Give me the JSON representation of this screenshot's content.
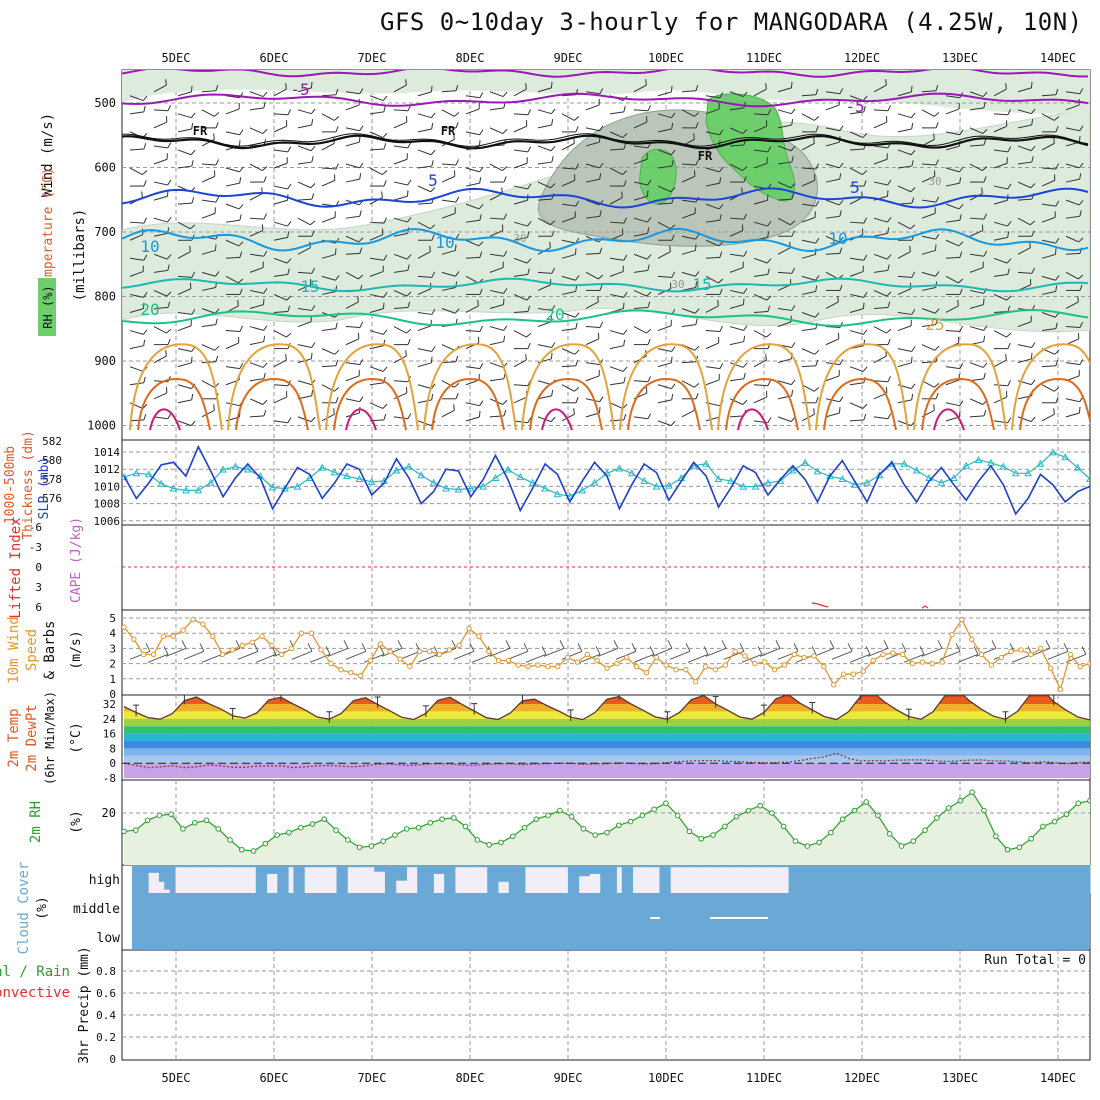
{
  "title": "GFS 0~10day 3-hourly for MANGODARA (4.25W, 10N)",
  "colors": {
    "purple": "#9b18b8",
    "black": "#111111",
    "blue5": "#1a45d6",
    "blue10": "#1898e0",
    "teal15": "#20b7b0",
    "green20": "#1fbf88",
    "orange": "#e3a23a",
    "darkorange": "#dd6b1c",
    "magenta": "#d0177b",
    "rh_green": "#6ccf6c",
    "rh_grey": "#b9c6b9",
    "rh_light": "#dcebdc",
    "slp": "#1f3fcf",
    "thickness": "#27b7c8",
    "wind": "#e3962e",
    "rh2m": "#2e9e2e",
    "cloud": "#6aa9d6",
    "precip_green": "#2e9e2e",
    "precip_red": "#e03030"
  },
  "chart_data": [
    {
      "type": "contour",
      "panel": "upper-air",
      "y_axis_label": "(millibars)",
      "side_labels": [
        "Wind (m/s)",
        "Temperature (°C)",
        "RH (%)"
      ],
      "y_ticks": [
        500,
        600,
        700,
        800,
        900,
        1000
      ],
      "x_ticks": [
        "5DEC",
        "6DEC",
        "7DEC",
        "8DEC",
        "9DEC",
        "10DEC",
        "11DEC",
        "12DEC",
        "13DEC",
        "14DEC"
      ],
      "contour_labels": [
        {
          "text": "-5",
          "level": -5
        },
        {
          "text": "-5",
          "level": -5
        },
        {
          "text": "FR",
          "level": 0
        },
        {
          "text": "FR",
          "level": 0
        },
        {
          "text": "FR",
          "level": 0
        },
        {
          "text": "5",
          "level": 5
        },
        {
          "text": "5",
          "level": 5
        },
        {
          "text": "10",
          "level": 10
        },
        {
          "text": "10",
          "level": 10
        },
        {
          "text": "10",
          "level": 10
        },
        {
          "text": "15",
          "level": 15
        },
        {
          "text": "15",
          "level": 15
        },
        {
          "text": "20",
          "level": 20
        },
        {
          "text": "20",
          "level": 20
        },
        {
          "text": "25",
          "level": 25
        },
        {
          "text": "30",
          "level": 30
        },
        {
          "text": "30",
          "level": 30
        },
        {
          "text": "30",
          "level": 30
        }
      ]
    },
    {
      "type": "line",
      "panel": "slp-thickness",
      "left_labels": [
        "1000-500mb",
        "Thickness (dm)"
      ],
      "right_label": "SLP (mb)",
      "thickness_ticks": [
        576,
        578,
        580,
        582
      ],
      "slp_ticks": [
        1006,
        1008,
        1010,
        1012,
        1014
      ],
      "series": [
        {
          "name": "SLP (mb)",
          "values": [
            1011.2,
            1008.6,
            1010.4,
            1012.5,
            1012.8,
            1011.2,
            1014.6,
            1011.8,
            1008.8,
            1011.0,
            1012.6,
            1011.0,
            1007.4,
            1009.8,
            1012.2,
            1011.4,
            1008.6,
            1010.4,
            1012.6,
            1012.0,
            1009.0,
            1010.4,
            1013.2,
            1011.0,
            1008.0,
            1009.4,
            1012.0,
            1011.8,
            1008.8,
            1010.8,
            1013.6,
            1010.8,
            1007.2,
            1009.8,
            1012.6,
            1011.4,
            1008.2,
            1010.6,
            1012.8,
            1011.2,
            1007.4,
            1010.2,
            1012.6,
            1011.6,
            1008.4,
            1010.6,
            1012.8,
            1011.2,
            1007.6,
            1009.8,
            1012.4,
            1011.6,
            1009.0,
            1010.8,
            1012.4,
            1010.8,
            1008.2,
            1011.2,
            1013.0,
            1010.6,
            1008.2,
            1011.4,
            1012.8,
            1010.2,
            1008.2,
            1010.6,
            1012.2,
            1010.2,
            1008.4,
            1010.6,
            1012.4,
            1010.2,
            1006.8,
            1008.6,
            1011.4,
            1010.2,
            1008.2,
            1009.4,
            1010.0
          ]
        },
        {
          "name": "1000-500mb Thickness (dm)",
          "values": [
            578.2,
            578.6,
            578.5,
            577.5,
            577.0,
            576.8,
            576.8,
            577.6,
            579.0,
            579.3,
            579.0,
            578.3,
            577.1,
            577.0,
            577.2,
            578.1,
            579.2,
            578.7,
            578.3,
            578.0,
            577.7,
            577.8,
            578.9,
            579.3,
            578.4,
            577.6,
            577.0,
            576.9,
            577.0,
            577.2,
            578.1,
            579.0,
            578.2,
            577.6,
            577.0,
            576.4,
            576.2,
            576.8,
            577.6,
            578.6,
            579.1,
            578.6,
            577.8,
            577.2,
            577.3,
            578.1,
            579.4,
            579.6,
            578.0,
            577.8,
            577.2,
            577.2,
            577.6,
            577.8,
            578.9,
            579.7,
            578.8,
            578.3,
            578.0,
            577.4,
            577.6,
            578.4,
            579.6,
            579.6,
            578.9,
            578.1,
            577.6,
            578.1,
            579.4,
            580.0,
            579.7,
            579.3,
            578.6,
            578.6,
            579.6,
            580.8,
            580.3,
            579.2,
            578.0
          ]
        }
      ]
    },
    {
      "type": "line",
      "panel": "cape-li",
      "left_labels": [
        "Lifted Index",
        "CAPE (J/kg)"
      ],
      "y_ticks": [
        -6,
        -3,
        0,
        3,
        6
      ]
    },
    {
      "type": "line",
      "panel": "wind10m",
      "left_labels": [
        "10m Wind",
        "Speed",
        "& Barbs",
        "(m/s)"
      ],
      "y_ticks": [
        0,
        1,
        2,
        3,
        4,
        5
      ],
      "series": [
        {
          "name": "10m Wind Speed (m/s)",
          "values": [
            4.4,
            3.6,
            2.6,
            2.6,
            3.8,
            3.8,
            4.2,
            4.9,
            4.6,
            3.8,
            2.6,
            2.9,
            3.2,
            3.4,
            3.8,
            3.2,
            2.6,
            3.0,
            4.0,
            4.0,
            2.9,
            2.0,
            1.6,
            1.4,
            1.2,
            2.2,
            3.3,
            2.8,
            2.3,
            1.8,
            2.8,
            2.8,
            2.6,
            2.9,
            3.2,
            4.3,
            3.8,
            2.8,
            2.2,
            2.2,
            1.9,
            1.8,
            1.9,
            1.8,
            1.8,
            2.4,
            2.1,
            2.6,
            2.2,
            1.7,
            2.0,
            2.4,
            1.8,
            1.4,
            2.4,
            1.9,
            1.6,
            1.6,
            0.8,
            1.8,
            1.6,
            1.9,
            2.8,
            2.5,
            2.0,
            2.1,
            1.6,
            1.9,
            2.6,
            2.4,
            2.5,
            1.8,
            0.6,
            1.3,
            1.3,
            1.5,
            2.2,
            2.6,
            2.7,
            2.6,
            2.0,
            2.1,
            2.0,
            2.1,
            3.9,
            4.9,
            3.6,
            2.6,
            1.9,
            2.4,
            2.8,
            2.9,
            2.6,
            3.0,
            1.7,
            0.3,
            2.6,
            1.8,
            2.0
          ]
        }
      ]
    },
    {
      "type": "area",
      "panel": "temp2m",
      "left_labels": [
        "2m Temp",
        "2m DewPt",
        "(6hr Min/Max)",
        "(°C)"
      ],
      "y_ticks": [
        -8,
        0,
        8,
        16,
        24,
        32
      ],
      "series": [
        {
          "name": "2m Temp (°C)",
          "values": [
            30.6,
            27.4,
            24.6,
            23.8,
            26.8,
            33.8,
            35.8,
            32.2,
            29.4,
            25.6,
            24.4,
            27.2,
            34.2,
            35.6,
            32.0,
            28.8,
            25.0,
            23.8,
            27.0,
            33.8,
            35.4,
            31.8,
            28.4,
            24.8,
            23.6,
            27.0,
            34.0,
            35.6,
            31.8,
            28.2,
            24.6,
            23.6,
            27.2,
            33.8,
            34.6,
            31.2,
            28.2,
            24.8,
            23.6,
            27.4,
            34.6,
            36.0,
            32.0,
            28.6,
            25.0,
            23.8,
            27.4,
            34.4,
            36.6,
            32.0,
            28.6,
            25.0,
            23.8,
            27.4,
            34.8,
            37.2,
            32.4,
            28.8,
            25.2,
            23.6,
            27.8,
            36.2,
            38.6,
            33.0,
            28.8,
            25.2,
            23.8,
            27.8,
            36.6,
            39.8,
            33.8,
            29.2,
            25.4,
            23.8,
            28.0,
            36.6,
            40.2,
            33.2,
            28.8,
            25.0,
            23.4
          ]
        },
        {
          "name": "2m DewPt (°C)",
          "values": [
            0.0,
            -1.2,
            -2.4,
            -2.0,
            -1.4,
            -2.4,
            -2.0,
            -1.0,
            -1.4,
            -2.2,
            -2.2,
            -1.6,
            -1.4,
            -1.4,
            -2.4,
            -2.0,
            -1.4,
            -1.2,
            -1.6,
            -2.0,
            -1.4,
            -0.6,
            -0.4,
            -1.0,
            -1.2,
            -0.6,
            -0.2,
            -0.4,
            -1.0,
            -1.2,
            -0.6,
            -0.4,
            -0.2,
            -0.8,
            -0.4,
            -0.2,
            0.0,
            0.0,
            -0.6,
            -0.4,
            -0.2,
            0.2,
            0.0,
            -0.4,
            -0.2,
            0.4,
            0.8,
            1.2,
            1.4,
            1.4,
            1.0,
            0.8,
            0.4,
            0.2,
            0.2,
            0.6,
            1.4,
            2.6,
            3.4,
            5.4,
            2.6,
            1.2,
            1.4,
            1.2,
            1.6,
            1.8,
            1.8,
            1.4,
            1.0,
            1.2,
            1.6,
            1.8,
            1.2,
            1.2,
            0.8,
            0.2,
            0.8,
            0.4,
            -0.2,
            0.4,
            0.6
          ]
        }
      ]
    },
    {
      "type": "area",
      "panel": "rh2m",
      "left_labels": [
        "2m RH",
        "(%)"
      ],
      "y_ticks": [
        20
      ],
      "series": [
        {
          "name": "2m RH (%)",
          "values": [
            12.5,
            13.0,
            17.0,
            19.0,
            19.5,
            13.5,
            16.0,
            17.0,
            13.5,
            9.0,
            5.0,
            4.5,
            7.5,
            11.0,
            12.0,
            14.0,
            15.5,
            17.5,
            13.0,
            9.0,
            6.0,
            6.5,
            8.5,
            11.0,
            13.5,
            14.0,
            16.0,
            17.5,
            18.0,
            14.5,
            9.0,
            7.0,
            8.0,
            10.5,
            14.0,
            17.5,
            19.0,
            21.0,
            18.5,
            13.5,
            11.0,
            12.0,
            15.0,
            16.5,
            19.0,
            21.5,
            24.0,
            19.0,
            12.5,
            9.5,
            11.0,
            14.5,
            18.5,
            21.0,
            23.0,
            20.0,
            14.5,
            8.5,
            6.5,
            8.0,
            12.0,
            17.5,
            21.0,
            24.5,
            19.0,
            11.5,
            6.5,
            8.5,
            13.0,
            18.0,
            22.0,
            25.0,
            28.5,
            21.0,
            10.5,
            5.0,
            6.0,
            9.5,
            14.5,
            16.5,
            19.5,
            24.0,
            25.0
          ]
        }
      ]
    },
    {
      "type": "bar",
      "panel": "cloud",
      "left_labels": [
        "Cloud Cover",
        "(%)"
      ],
      "y_ticks": [
        "high",
        "middle",
        "low"
      ],
      "series": [
        {
          "name": "high cloud (%)",
          "values": [
            100,
            100,
            100,
            28,
            28,
            60,
            88,
            100,
            8,
            8,
            8,
            8,
            8,
            8,
            8,
            8,
            8,
            8,
            8,
            8,
            8,
            8,
            8,
            100,
            100,
            32,
            32,
            100,
            100,
            8,
            100,
            100,
            8,
            8,
            8,
            8,
            8,
            8,
            100,
            100,
            8,
            8,
            8,
            8,
            8,
            24,
            24,
            100,
            100,
            56,
            56,
            8,
            8,
            100,
            100,
            100,
            32,
            32,
            100,
            100,
            8,
            8,
            8,
            8,
            8,
            8,
            100,
            100,
            60,
            60,
            100,
            100,
            100,
            8,
            8,
            8,
            8,
            8,
            8,
            8,
            8,
            100,
            100,
            40,
            40,
            32,
            32,
            100,
            100,
            100,
            8,
            100,
            100,
            8,
            8,
            8,
            8,
            8,
            100,
            100,
            8,
            8,
            8,
            8,
            8,
            8,
            8,
            8,
            8,
            8,
            8,
            8,
            8,
            8,
            8,
            8,
            8,
            8,
            8,
            8,
            8,
            8,
            100,
            100,
            100,
            100,
            100,
            100,
            100,
            100,
            100,
            100,
            100,
            100,
            100,
            100,
            100,
            100,
            100,
            100,
            100,
            100,
            100,
            100,
            100,
            100,
            100,
            100,
            100,
            100,
            100,
            100,
            100,
            100,
            100,
            100,
            100,
            100,
            100,
            100,
            100,
            100,
            100,
            100,
            100,
            100,
            100,
            100,
            100,
            100,
            100,
            100,
            100,
            100,
            100,
            100,
            100,
            100
          ]
        }
      ]
    },
    {
      "type": "line",
      "panel": "precip",
      "left_labels": [
        "3hr Precip (mm)",
        "Total / Rain",
        "Convective"
      ],
      "y_ticks": [
        0,
        0.2,
        0.4,
        0.6,
        0.8
      ],
      "annotation": "Run Total = 0",
      "x_ticks": [
        "5DEC",
        "6DEC",
        "7DEC",
        "8DEC",
        "9DEC",
        "10DEC",
        "11DEC",
        "12DEC",
        "13DEC",
        "14DEC"
      ]
    }
  ]
}
